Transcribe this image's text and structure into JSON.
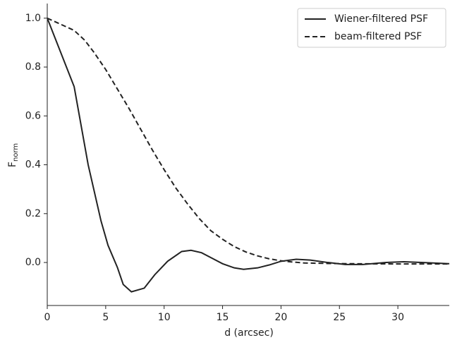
{
  "chart_data": {
    "type": "line",
    "xlabel": "d (arcsec)",
    "ylabel": "F",
    "ylabel_subscript": "norm",
    "xlim": [
      0,
      34.4
    ],
    "ylim": [
      -0.176,
      1.06
    ],
    "xticks": [
      0,
      5,
      10,
      15,
      20,
      25,
      30
    ],
    "yticks": [
      {
        "value": 0,
        "label": "0.0"
      },
      {
        "value": 0.2,
        "label": "0.2"
      },
      {
        "value": 0.4,
        "label": "0.4"
      },
      {
        "value": 0.6,
        "label": "0.6"
      },
      {
        "value": 0.8,
        "label": "0.8"
      },
      {
        "value": 1,
        "label": "1.0"
      }
    ],
    "legend": "upper right",
    "series": [
      {
        "name": "Wiener-filtered PSF",
        "color": "#222222",
        "dash": "solid",
        "x": [
          0,
          2.3,
          3.5,
          4.6,
          5.2,
          6.0,
          6.5,
          7.2,
          8.3,
          9.2,
          10.3,
          11.5,
          12.3,
          13.2,
          14,
          15,
          16,
          16.8,
          18,
          19,
          20,
          21.3,
          22.5,
          24,
          25.5,
          27,
          29,
          30.5,
          32,
          34.4
        ],
        "values": [
          1.0,
          0.72,
          0.4,
          0.17,
          0.07,
          -0.02,
          -0.09,
          -0.12,
          -0.105,
          -0.05,
          0.005,
          0.045,
          0.05,
          0.04,
          0.02,
          -0.005,
          -0.022,
          -0.028,
          -0.022,
          -0.01,
          0.005,
          0.013,
          0.01,
          0.0,
          -0.008,
          -0.008,
          0.0,
          0.003,
          0.0,
          -0.005
        ]
      },
      {
        "name": "beam-filtered PSF",
        "color": "#222222",
        "dash": "dashed",
        "x": [
          0,
          2.3,
          3.2,
          4,
          5,
          6,
          7,
          8,
          9,
          10,
          11,
          12,
          13,
          14,
          15,
          16,
          17,
          18,
          19,
          20,
          21,
          22,
          24,
          26,
          30,
          34.4
        ],
        "values": [
          1.0,
          0.95,
          0.91,
          0.86,
          0.79,
          0.71,
          0.63,
          0.545,
          0.46,
          0.38,
          0.305,
          0.24,
          0.18,
          0.13,
          0.095,
          0.065,
          0.043,
          0.027,
          0.015,
          0.007,
          0.002,
          -0.002,
          -0.004,
          -0.005,
          -0.006,
          -0.006
        ]
      }
    ]
  }
}
